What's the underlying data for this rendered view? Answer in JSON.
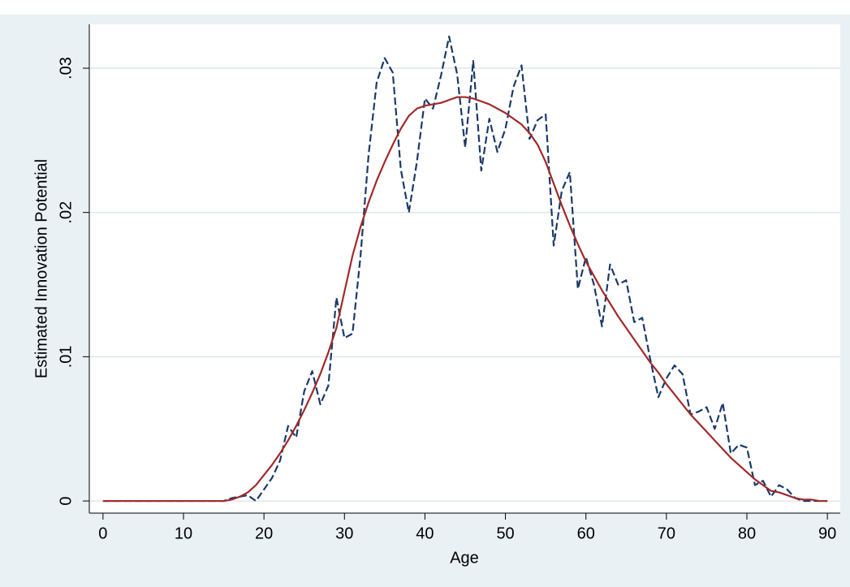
{
  "chart_data": {
    "type": "line",
    "x_label": "Age",
    "y_label": "Estimated Innovation Potential",
    "x": [
      0,
      1,
      2,
      3,
      4,
      5,
      6,
      7,
      8,
      9,
      10,
      11,
      12,
      13,
      14,
      15,
      16,
      17,
      18,
      19,
      20,
      21,
      22,
      23,
      24,
      25,
      26,
      27,
      28,
      29,
      30,
      31,
      32,
      33,
      34,
      35,
      36,
      37,
      38,
      39,
      40,
      41,
      42,
      43,
      44,
      45,
      46,
      47,
      48,
      49,
      50,
      51,
      52,
      53,
      54,
      55,
      56,
      57,
      58,
      59,
      60,
      61,
      62,
      63,
      64,
      65,
      66,
      67,
      68,
      69,
      70,
      71,
      72,
      73,
      74,
      75,
      76,
      77,
      78,
      79,
      80,
      81,
      82,
      83,
      84,
      85,
      86,
      87,
      88,
      89,
      90
    ],
    "series": [
      {
        "color": "#1a3a6b",
        "dashed": true,
        "values": [
          0,
          0,
          0,
          0,
          0,
          0,
          0,
          0,
          0,
          0,
          0,
          0,
          0,
          0,
          0,
          0,
          0.0002,
          0.0003,
          0.0004,
          0,
          0.0008,
          0.0016,
          0.0028,
          0.0052,
          0.0044,
          0.0076,
          0.009,
          0.0067,
          0.008,
          0.0141,
          0.0113,
          0.0116,
          0.017,
          0.024,
          0.029,
          0.0307,
          0.0297,
          0.023,
          0.02,
          0.0235,
          0.0279,
          0.0272,
          0.0295,
          0.0322,
          0.0296,
          0.0245,
          0.0305,
          0.0229,
          0.0265,
          0.0242,
          0.0258,
          0.0287,
          0.0302,
          0.0251,
          0.0264,
          0.0268,
          0.0177,
          0.0215,
          0.0228,
          0.0147,
          0.0169,
          0.015,
          0.0121,
          0.0164,
          0.015,
          0.0153,
          0.0124,
          0.0127,
          0.0098,
          0.0072,
          0.0085,
          0.0094,
          0.0088,
          0.006,
          0.0062,
          0.0065,
          0.005,
          0.0068,
          0.0033,
          0.0039,
          0.0037,
          0.0011,
          0.0014,
          0.0003,
          0.0011,
          0.0008,
          0.0002,
          0,
          0,
          0,
          0
        ]
      },
      {
        "color": "#a02a2a",
        "dashed": false,
        "values": [
          0,
          0,
          0,
          0,
          0,
          0,
          0,
          0,
          0,
          0,
          0,
          0,
          0,
          0,
          0,
          0,
          0.0001,
          0.0003,
          0.0006,
          0.0011,
          0.0018,
          0.0025,
          0.0033,
          0.0042,
          0.0052,
          0.0063,
          0.0075,
          0.0088,
          0.0103,
          0.012,
          0.0145,
          0.017,
          0.019,
          0.0207,
          0.0222,
          0.0235,
          0.0247,
          0.0258,
          0.0267,
          0.0272,
          0.0274,
          0.0275,
          0.0276,
          0.0278,
          0.028,
          0.028,
          0.0279,
          0.0277,
          0.0275,
          0.0272,
          0.0269,
          0.0265,
          0.0261,
          0.0255,
          0.0247,
          0.0235,
          0.022,
          0.0205,
          0.0191,
          0.0178,
          0.0166,
          0.0156,
          0.0146,
          0.0137,
          0.0128,
          0.012,
          0.0112,
          0.0104,
          0.0096,
          0.0089,
          0.0081,
          0.0074,
          0.0067,
          0.006,
          0.0054,
          0.0048,
          0.0042,
          0.0036,
          0.003,
          0.0025,
          0.002,
          0.0015,
          0.0011,
          0.0007,
          0.0006,
          0.0004,
          0.0002,
          0.0001,
          0.0001,
          0,
          0
        ]
      }
    ],
    "xlim": [
      -1.7,
      91.6
    ],
    "xticks": [
      0,
      10,
      20,
      30,
      40,
      50,
      60,
      70,
      80,
      90
    ],
    "ylim": [
      -0.00084,
      0.03304
    ],
    "yticks": [
      0,
      {
        "value": 0.01,
        "label": ".01"
      },
      {
        "value": 0.02,
        "label": ".02"
      },
      {
        "value": 0.03,
        "label": ".03"
      }
    ],
    "grid": true
  }
}
